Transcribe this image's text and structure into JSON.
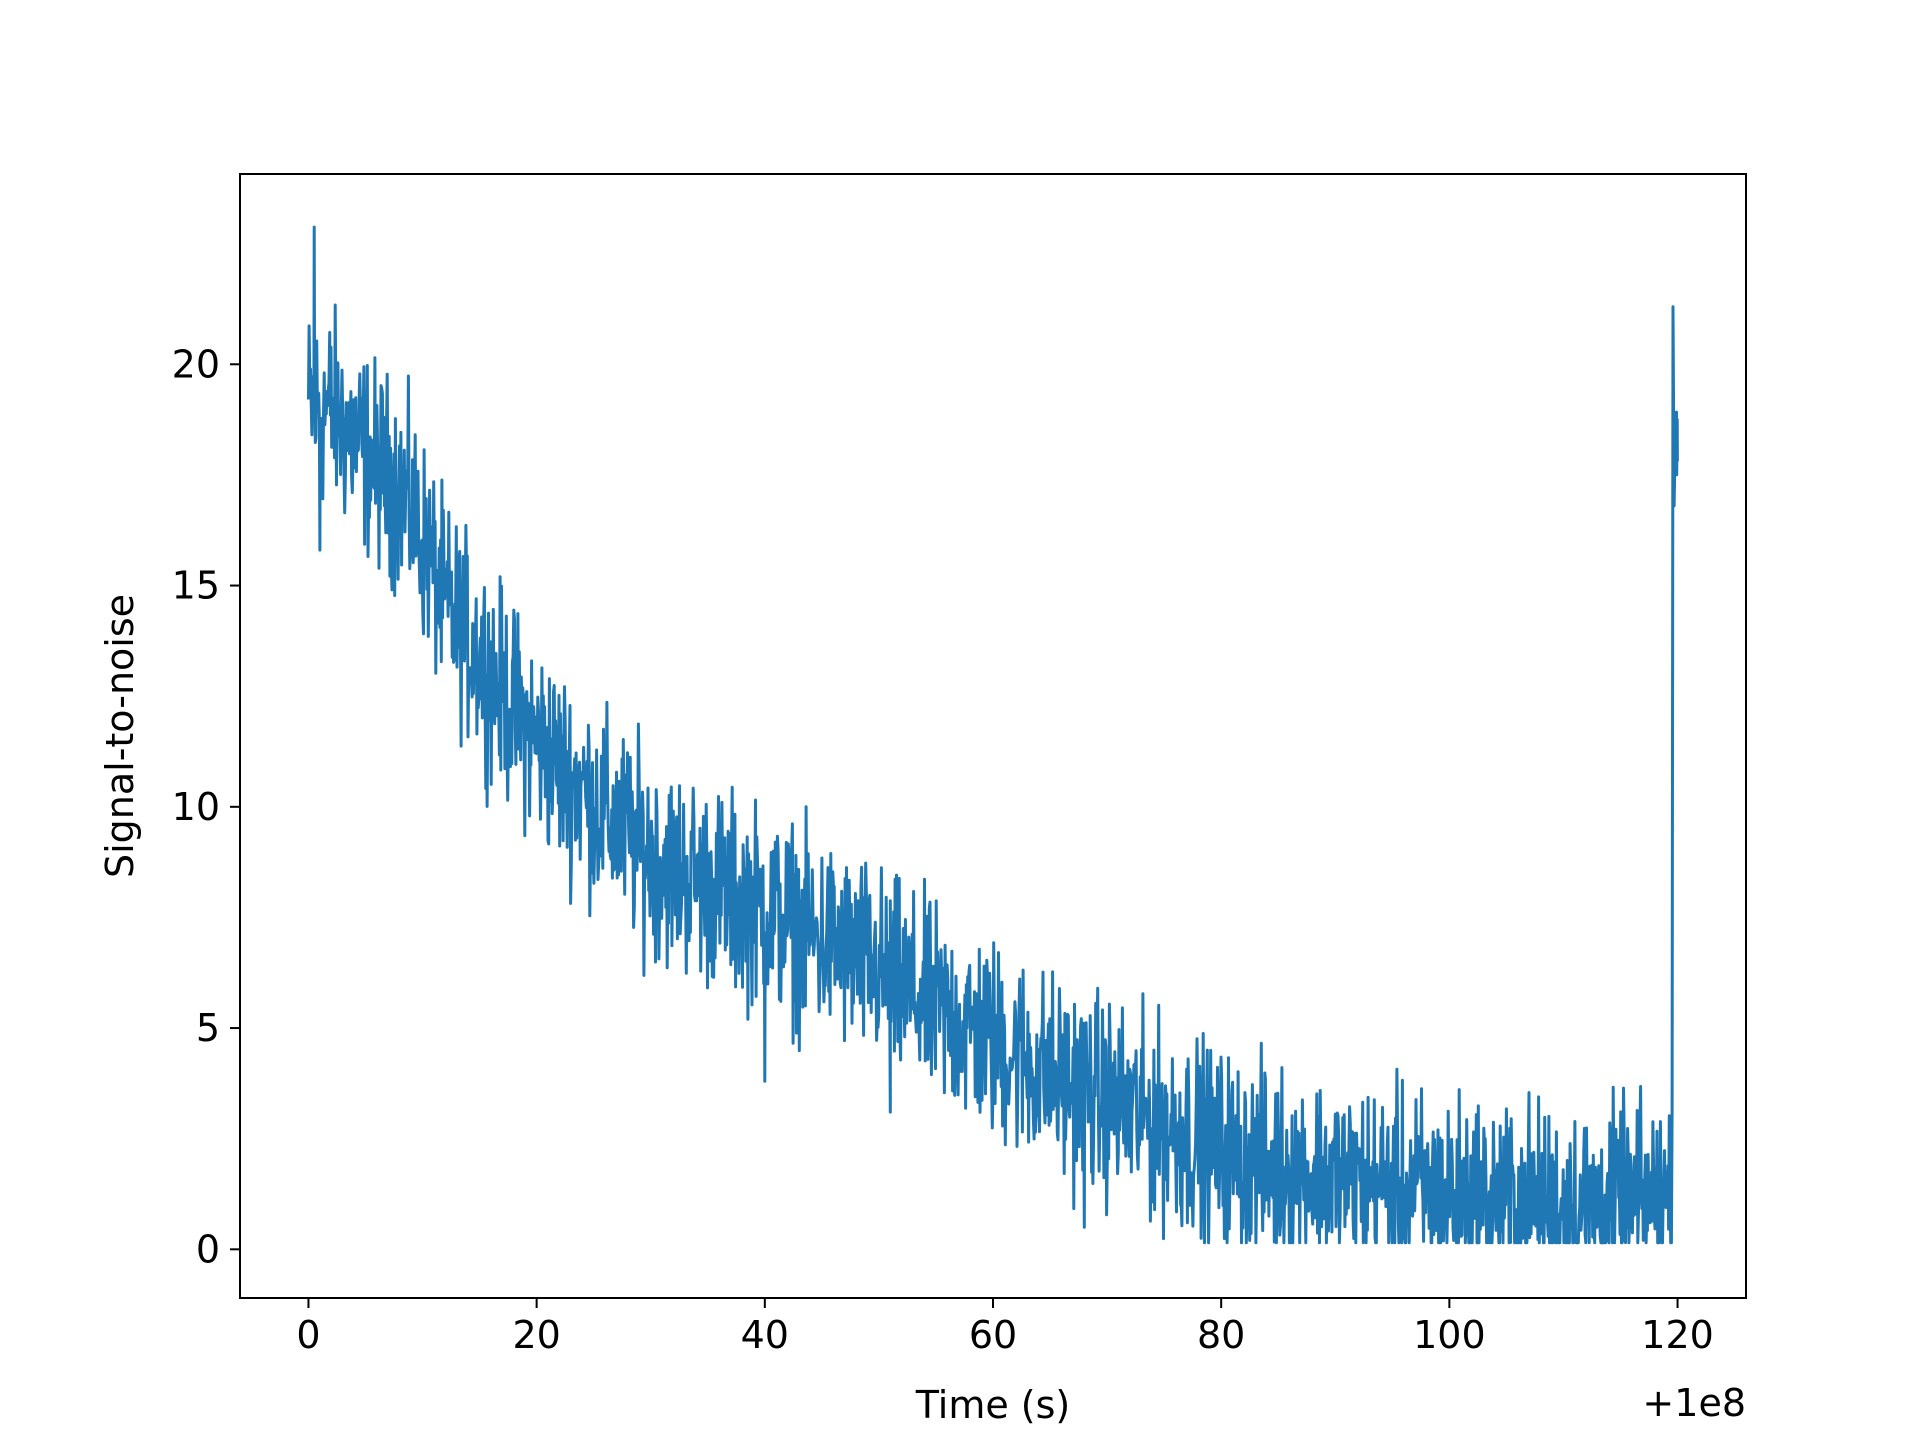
{
  "chart_data": {
    "type": "line",
    "title": "",
    "xlabel": "Time (s)",
    "ylabel": "Signal-to-noise",
    "x_offset_label": "+1e8",
    "xlim": [
      -6,
      126
    ],
    "ylim": [
      -1.1,
      24.3
    ],
    "x_ticks": [
      0,
      20,
      40,
      60,
      80,
      100,
      120
    ],
    "x_tick_labels": [
      "0",
      "20",
      "40",
      "60",
      "80",
      "100",
      "120"
    ],
    "y_ticks": [
      0,
      5,
      10,
      15,
      20
    ],
    "y_tick_labels": [
      "0",
      "5",
      "10",
      "15",
      "20"
    ],
    "grid": false,
    "legend": "none",
    "series": [
      {
        "color": "#1f77b4",
        "x": [
          0,
          2,
          4,
          6,
          8,
          10,
          12,
          14,
          16,
          18,
          20,
          22,
          24,
          26,
          28,
          30,
          32,
          34,
          36,
          38,
          40,
          42,
          44,
          46,
          48,
          50,
          52,
          54,
          56,
          58,
          60,
          62,
          64,
          66,
          68,
          70,
          72,
          74,
          76,
          78,
          80,
          82,
          84,
          86,
          88,
          90,
          92,
          94,
          96,
          98,
          100,
          102,
          104,
          106,
          108,
          110,
          112,
          114,
          116,
          118,
          119.5,
          119.8,
          120
        ],
        "values": [
          19.0,
          19.0,
          18.3,
          17.7,
          17.2,
          16.1,
          14.5,
          13.8,
          13.0,
          12.2,
          11.5,
          10.9,
          10.4,
          9.8,
          9.4,
          8.9,
          8.6,
          8.4,
          8.1,
          7.9,
          7.7,
          7.4,
          7.1,
          6.9,
          6.6,
          6.3,
          5.9,
          5.6,
          5.3,
          5.0,
          4.7,
          4.4,
          4.1,
          3.8,
          3.6,
          3.4,
          3.1,
          2.9,
          2.7,
          2.5,
          2.2,
          2.0,
          1.9,
          1.8,
          1.7,
          1.6,
          1.5,
          1.4,
          1.3,
          1.3,
          1.2,
          1.2,
          1.1,
          1.1,
          1.0,
          1.0,
          1.0,
          1.0,
          1.0,
          1.1,
          1.2,
          18.8,
          18.2
        ],
        "noise_amplitude": 1.1,
        "spikes": [
          {
            "x": 0.5,
            "y": 23.1
          },
          {
            "x": 1.0,
            "y": 15.8
          },
          {
            "x": 40.0,
            "y": 3.8
          },
          {
            "x": 51.0,
            "y": 3.1
          },
          {
            "x": 68.0,
            "y": 0.5
          },
          {
            "x": 119.6,
            "y": 21.3
          },
          {
            "x": 119.7,
            "y": 16.8
          }
        ]
      }
    ]
  }
}
